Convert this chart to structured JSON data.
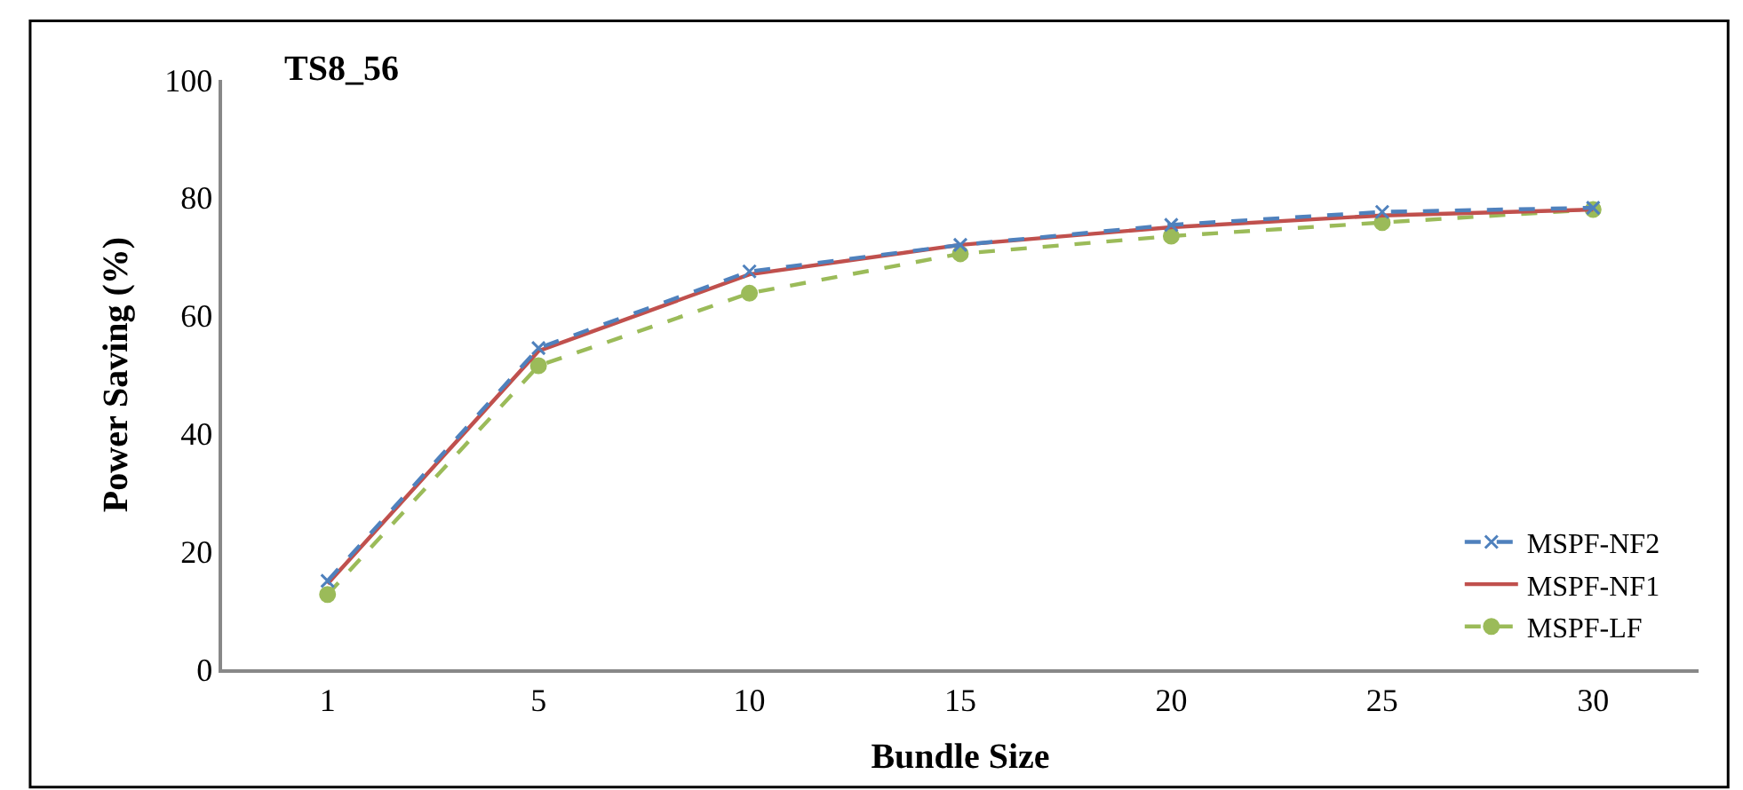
{
  "chart_data": {
    "type": "line",
    "title": "TS8_56",
    "xlabel": "Bundle Size",
    "ylabel": "Power Saving (%)",
    "categories": [
      "1",
      "5",
      "10",
      "15",
      "20",
      "25",
      "30"
    ],
    "ylim": [
      0,
      100
    ],
    "yticks": [
      0,
      20,
      40,
      60,
      80,
      100
    ],
    "legend": "bottom right",
    "series": [
      {
        "name": "MSPF-NF2",
        "color": "#4f81bd",
        "values": [
          15,
          54.5,
          67.5,
          72,
          75.4,
          77.6,
          78.3
        ],
        "marker": "cross",
        "line_style": "dashed"
      },
      {
        "name": "MSPF-NF1",
        "color": "#c0504d",
        "values": [
          14.5,
          54,
          67,
          72,
          75,
          77,
          78
        ],
        "marker": "none",
        "line_style": "solid"
      },
      {
        "name": "MSPF-LF",
        "color": "#9bbb59",
        "values": [
          12.7,
          51.5,
          63.8,
          70.5,
          73.5,
          75.8,
          78
        ],
        "marker": "circle",
        "line_style": "dashed"
      }
    ]
  }
}
